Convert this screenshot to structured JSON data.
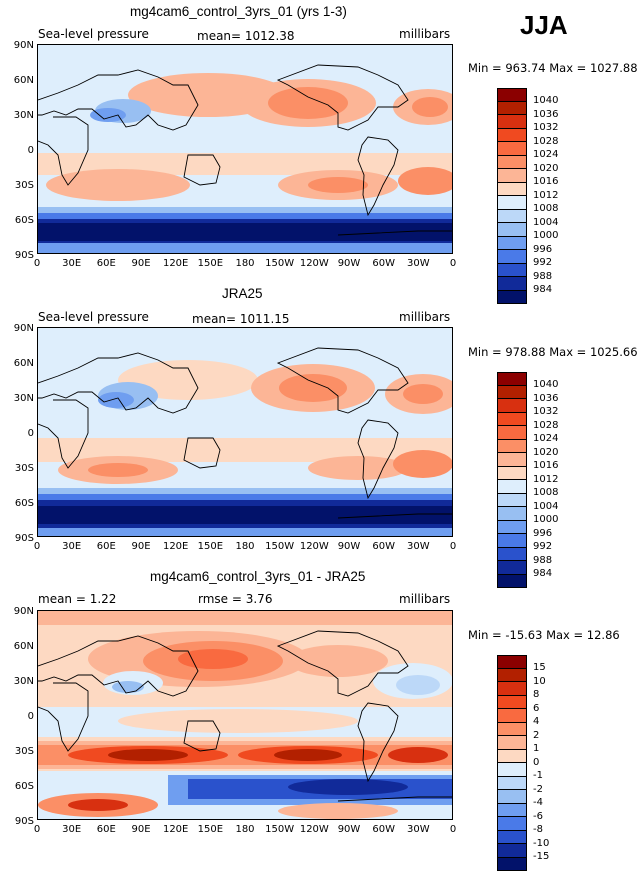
{
  "season": "JJA",
  "panels": [
    {
      "title": "mg4cam6_control_3yrs_01 (yrs 1-3)",
      "left_label": "Sea-level pressure",
      "center_label": "mean=  1012.38",
      "right_label": "millibars",
      "minmax": "Min = 963.74  Max = 1027.88",
      "colorbar": {
        "labels": [
          "1040",
          "1036",
          "1032",
          "1028",
          "1024",
          "1020",
          "1016",
          "1012",
          "1008",
          "1004",
          "1000",
          "996",
          "992",
          "988",
          "984"
        ],
        "colors": [
          "#8b0000",
          "#b22000",
          "#d83010",
          "#f04a20",
          "#f96a40",
          "#fb8f66",
          "#fcb596",
          "#fdd9c2",
          "#deeefc",
          "#bcd8f8",
          "#98bff2",
          "#6f9ef0",
          "#4a7ae8",
          "#2a52cc",
          "#112a99",
          "#02126a"
        ]
      }
    },
    {
      "title": "JRA25",
      "left_label": "Sea-level pressure",
      "center_label": "mean=  1011.15",
      "right_label": "millibars",
      "minmax": "Min = 978.88  Max = 1025.66",
      "colorbar": {
        "labels": [
          "1040",
          "1036",
          "1032",
          "1028",
          "1024",
          "1020",
          "1016",
          "1012",
          "1008",
          "1004",
          "1000",
          "996",
          "992",
          "988",
          "984"
        ],
        "colors": [
          "#8b0000",
          "#b22000",
          "#d83010",
          "#f04a20",
          "#f96a40",
          "#fb8f66",
          "#fcb596",
          "#fdd9c2",
          "#deeefc",
          "#bcd8f8",
          "#98bff2",
          "#6f9ef0",
          "#4a7ae8",
          "#2a52cc",
          "#112a99",
          "#02126a"
        ]
      }
    },
    {
      "title": "mg4cam6_control_3yrs_01 - JRA25",
      "left_label": "mean =     1.22",
      "center_label": "rmse =     3.76",
      "right_label": "millibars",
      "minmax": "Min = -15.63  Max =  12.86",
      "colorbar": {
        "labels": [
          "15",
          "10",
          "8",
          "6",
          "4",
          "2",
          "1",
          "0",
          "-1",
          "-2",
          "-4",
          "-6",
          "-8",
          "-10",
          "-15"
        ],
        "colors": [
          "#8b0000",
          "#b22000",
          "#d83010",
          "#f04a20",
          "#f96a40",
          "#fb8f66",
          "#fcb596",
          "#fdd9c2",
          "#deeefc",
          "#bcd8f8",
          "#98bff2",
          "#6f9ef0",
          "#4a7ae8",
          "#2a52cc",
          "#112a99",
          "#02126a"
        ]
      }
    }
  ],
  "lat_labels": [
    "90N",
    "60N",
    "30N",
    "0",
    "30S",
    "60S",
    "90S"
  ],
  "lon_labels": [
    "0",
    "30E",
    "60E",
    "90E",
    "120E",
    "150E",
    "180",
    "150W",
    "120W",
    "90W",
    "60W",
    "30W",
    "0"
  ]
}
